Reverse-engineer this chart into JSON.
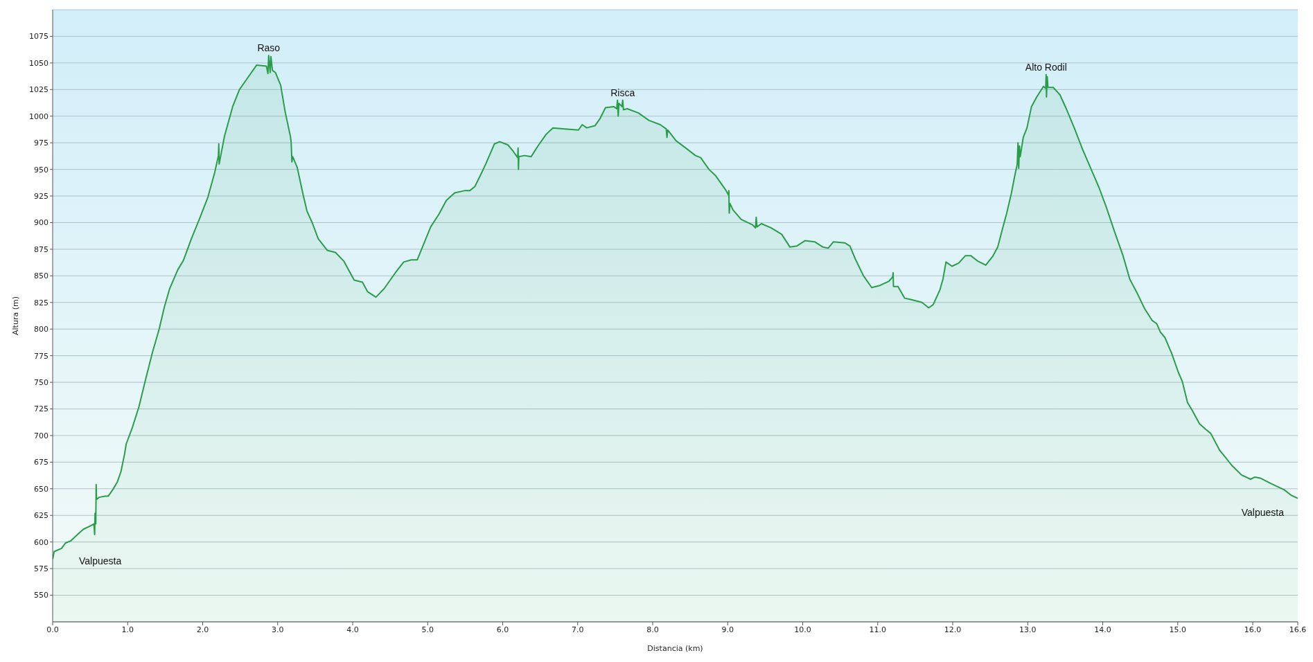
{
  "chart_data": {
    "type": "area",
    "xlabel": "Distancia (km)",
    "ylabel": "Altura (m)",
    "color": "#2a9d4a",
    "x": [
      0,
      0.02,
      0.12,
      0.17,
      0.24,
      0.33,
      0.41,
      0.5,
      0.55,
      0.56,
      0.565,
      0.575,
      0.58,
      0.585,
      0.62,
      0.7,
      0.74,
      0.8,
      0.86,
      0.91,
      0.96,
      0.98,
      1.06,
      1.15,
      1.24,
      1.33,
      1.42,
      1.49,
      1.56,
      1.67,
      1.74,
      1.85,
      1.96,
      2.07,
      2.16,
      2.21,
      2.215,
      2.22,
      2.29,
      2.4,
      2.49,
      2.58,
      2.72,
      2.85,
      2.87,
      2.88,
      2.9,
      2.91,
      2.93,
      2.97,
      3.04,
      3.1,
      3.17,
      3.18,
      3.19,
      3.2,
      3.26,
      3.34,
      3.39,
      3.46,
      3.54,
      3.66,
      3.77,
      3.88,
      4.02,
      4.13,
      4.2,
      4.31,
      4.42,
      4.57,
      4.68,
      4.78,
      4.86,
      4.93,
      5.04,
      5.15,
      5.25,
      5.36,
      5.49,
      5.56,
      5.63,
      5.72,
      5.78,
      5.89,
      5.96,
      6.07,
      6.14,
      6.2,
      6.205,
      6.21,
      6.215,
      6.29,
      6.38,
      6.47,
      6.58,
      6.67,
      6.83,
      7.01,
      7.06,
      7.12,
      7.23,
      7.3,
      7.37,
      7.48,
      7.52,
      7.53,
      7.54,
      7.55,
      7.59,
      7.6,
      7.61,
      7.66,
      7.81,
      7.95,
      8.1,
      8.18,
      8.19,
      8.2,
      8.31,
      8.46,
      8.57,
      8.64,
      8.75,
      8.84,
      8.91,
      8.97,
      9.01,
      9.015,
      9.02,
      9.03,
      9.07,
      9.18,
      9.33,
      9.37,
      9.38,
      9.39,
      9.45,
      9.58,
      9.72,
      9.83,
      9.92,
      10.03,
      10.16,
      10.27,
      10.34,
      10.41,
      10.56,
      10.63,
      10.7,
      10.81,
      10.92,
      11.03,
      11.15,
      11.2,
      11.205,
      11.21,
      11.27,
      11.36,
      11.43,
      11.54,
      11.59,
      11.68,
      11.74,
      11.83,
      11.87,
      11.91,
      11.99,
      12.08,
      12.17,
      12.24,
      12.33,
      12.44,
      12.53,
      12.6,
      12.67,
      12.72,
      12.78,
      12.83,
      12.86,
      12.87,
      12.88,
      12.89,
      12.9,
      12.94,
      12.99,
      13.05,
      13.12,
      13.21,
      13.24,
      13.245,
      13.25,
      13.26,
      13.27,
      13.34,
      13.43,
      13.52,
      13.62,
      13.73,
      13.84,
      13.95,
      14.05,
      14.16,
      14.27,
      14.36,
      14.45,
      14.56,
      14.66,
      14.72,
      14.77,
      14.83,
      14.92,
      15.01,
      15.06,
      15.13,
      15.19,
      15.29,
      15.37,
      15.44,
      15.56,
      15.63,
      15.72,
      15.85,
      15.97,
      16.03,
      16.1,
      16.24,
      16.42,
      16.51,
      16.6
    ],
    "values": [
      584,
      591,
      594,
      599,
      601,
      607,
      612,
      615,
      617,
      607,
      627,
      617,
      654,
      640,
      642,
      643,
      643,
      649,
      656,
      666,
      683,
      692,
      707,
      727,
      753,
      778,
      800,
      821,
      838,
      856,
      864,
      885,
      904,
      924,
      947,
      963,
      974,
      955,
      981,
      1009,
      1025,
      1034,
      1048,
      1047,
      1040,
      1057,
      1041,
      1056,
      1043,
      1041,
      1029,
      1004,
      981,
      975,
      957,
      962,
      952,
      926,
      911,
      900,
      885,
      874,
      872,
      864,
      846,
      844,
      835,
      830,
      838,
      853,
      863,
      865,
      865,
      877,
      896,
      908,
      921,
      928,
      930,
      930,
      934,
      947,
      956,
      974,
      976,
      973,
      967,
      961,
      970,
      950,
      962,
      963,
      962,
      972,
      983,
      989,
      988,
      987,
      992,
      989,
      991,
      998,
      1008,
      1009,
      1007,
      1015,
      1000,
      1012,
      1009,
      1015,
      1006,
      1007,
      1003,
      996,
      992,
      988,
      980,
      987,
      977,
      969,
      963,
      961,
      950,
      944,
      937,
      931,
      926,
      930,
      909,
      918,
      912,
      903,
      898,
      895,
      905,
      896,
      899,
      895,
      889,
      877,
      878,
      883,
      882,
      877,
      876,
      882,
      881,
      878,
      866,
      850,
      839,
      841,
      845,
      849,
      853,
      840,
      840,
      829,
      828,
      826,
      825,
      820,
      823,
      837,
      847,
      863,
      859,
      862,
      869,
      869,
      864,
      860,
      868,
      877,
      896,
      909,
      927,
      945,
      955,
      975,
      951,
      972,
      962,
      980,
      989,
      1009,
      1018,
      1028,
      1026,
      1039,
      1018,
      1037,
      1027,
      1027,
      1020,
      1006,
      989,
      969,
      951,
      933,
      914,
      891,
      869,
      847,
      835,
      819,
      808,
      805,
      797,
      792,
      777,
      759,
      751,
      731,
      724,
      711,
      706,
      702,
      686,
      680,
      672,
      663,
      659,
      661,
      660,
      655,
      649,
      644,
      641
    ],
    "xlim": [
      0,
      16.6
    ],
    "xticks": [
      {
        "value": 0,
        "label": "0.0"
      },
      {
        "value": 1,
        "label": "1.0"
      },
      {
        "value": 2,
        "label": "2.0"
      },
      {
        "value": 3,
        "label": "3.0"
      },
      {
        "value": 4,
        "label": "4.0"
      },
      {
        "value": 5,
        "label": "5.0"
      },
      {
        "value": 6,
        "label": "6.0"
      },
      {
        "value": 7,
        "label": "7.0"
      },
      {
        "value": 8,
        "label": "8.0"
      },
      {
        "value": 9,
        "label": "9.0"
      },
      {
        "value": 10,
        "label": "10.0"
      },
      {
        "value": 11,
        "label": "11.0"
      },
      {
        "value": 12,
        "label": "12.0"
      },
      {
        "value": 13,
        "label": "13.0"
      },
      {
        "value": 14,
        "label": "14.0"
      },
      {
        "value": 15,
        "label": "15.0"
      },
      {
        "value": 16,
        "label": "16.0"
      },
      {
        "value": 16.6,
        "label": "16.6"
      }
    ],
    "ylim": [
      525,
      1100
    ],
    "yticks": [
      550,
      575,
      600,
      625,
      650,
      675,
      700,
      725,
      750,
      775,
      800,
      825,
      850,
      875,
      900,
      925,
      950,
      975,
      1000,
      1025,
      1050,
      1075
    ],
    "grid": "y",
    "annotations": [
      {
        "text": "Raso",
        "x": 2.88,
        "y": 1057
      },
      {
        "text": "Risca",
        "x": 7.6,
        "y": 1015
      },
      {
        "text": "Alto Rodil",
        "x": 13.245,
        "y": 1039
      },
      {
        "text": "Valpuesta",
        "x": 0,
        "y": 584
      },
      {
        "text": "Valpuesta",
        "x": 16.6,
        "y": 641
      }
    ]
  }
}
